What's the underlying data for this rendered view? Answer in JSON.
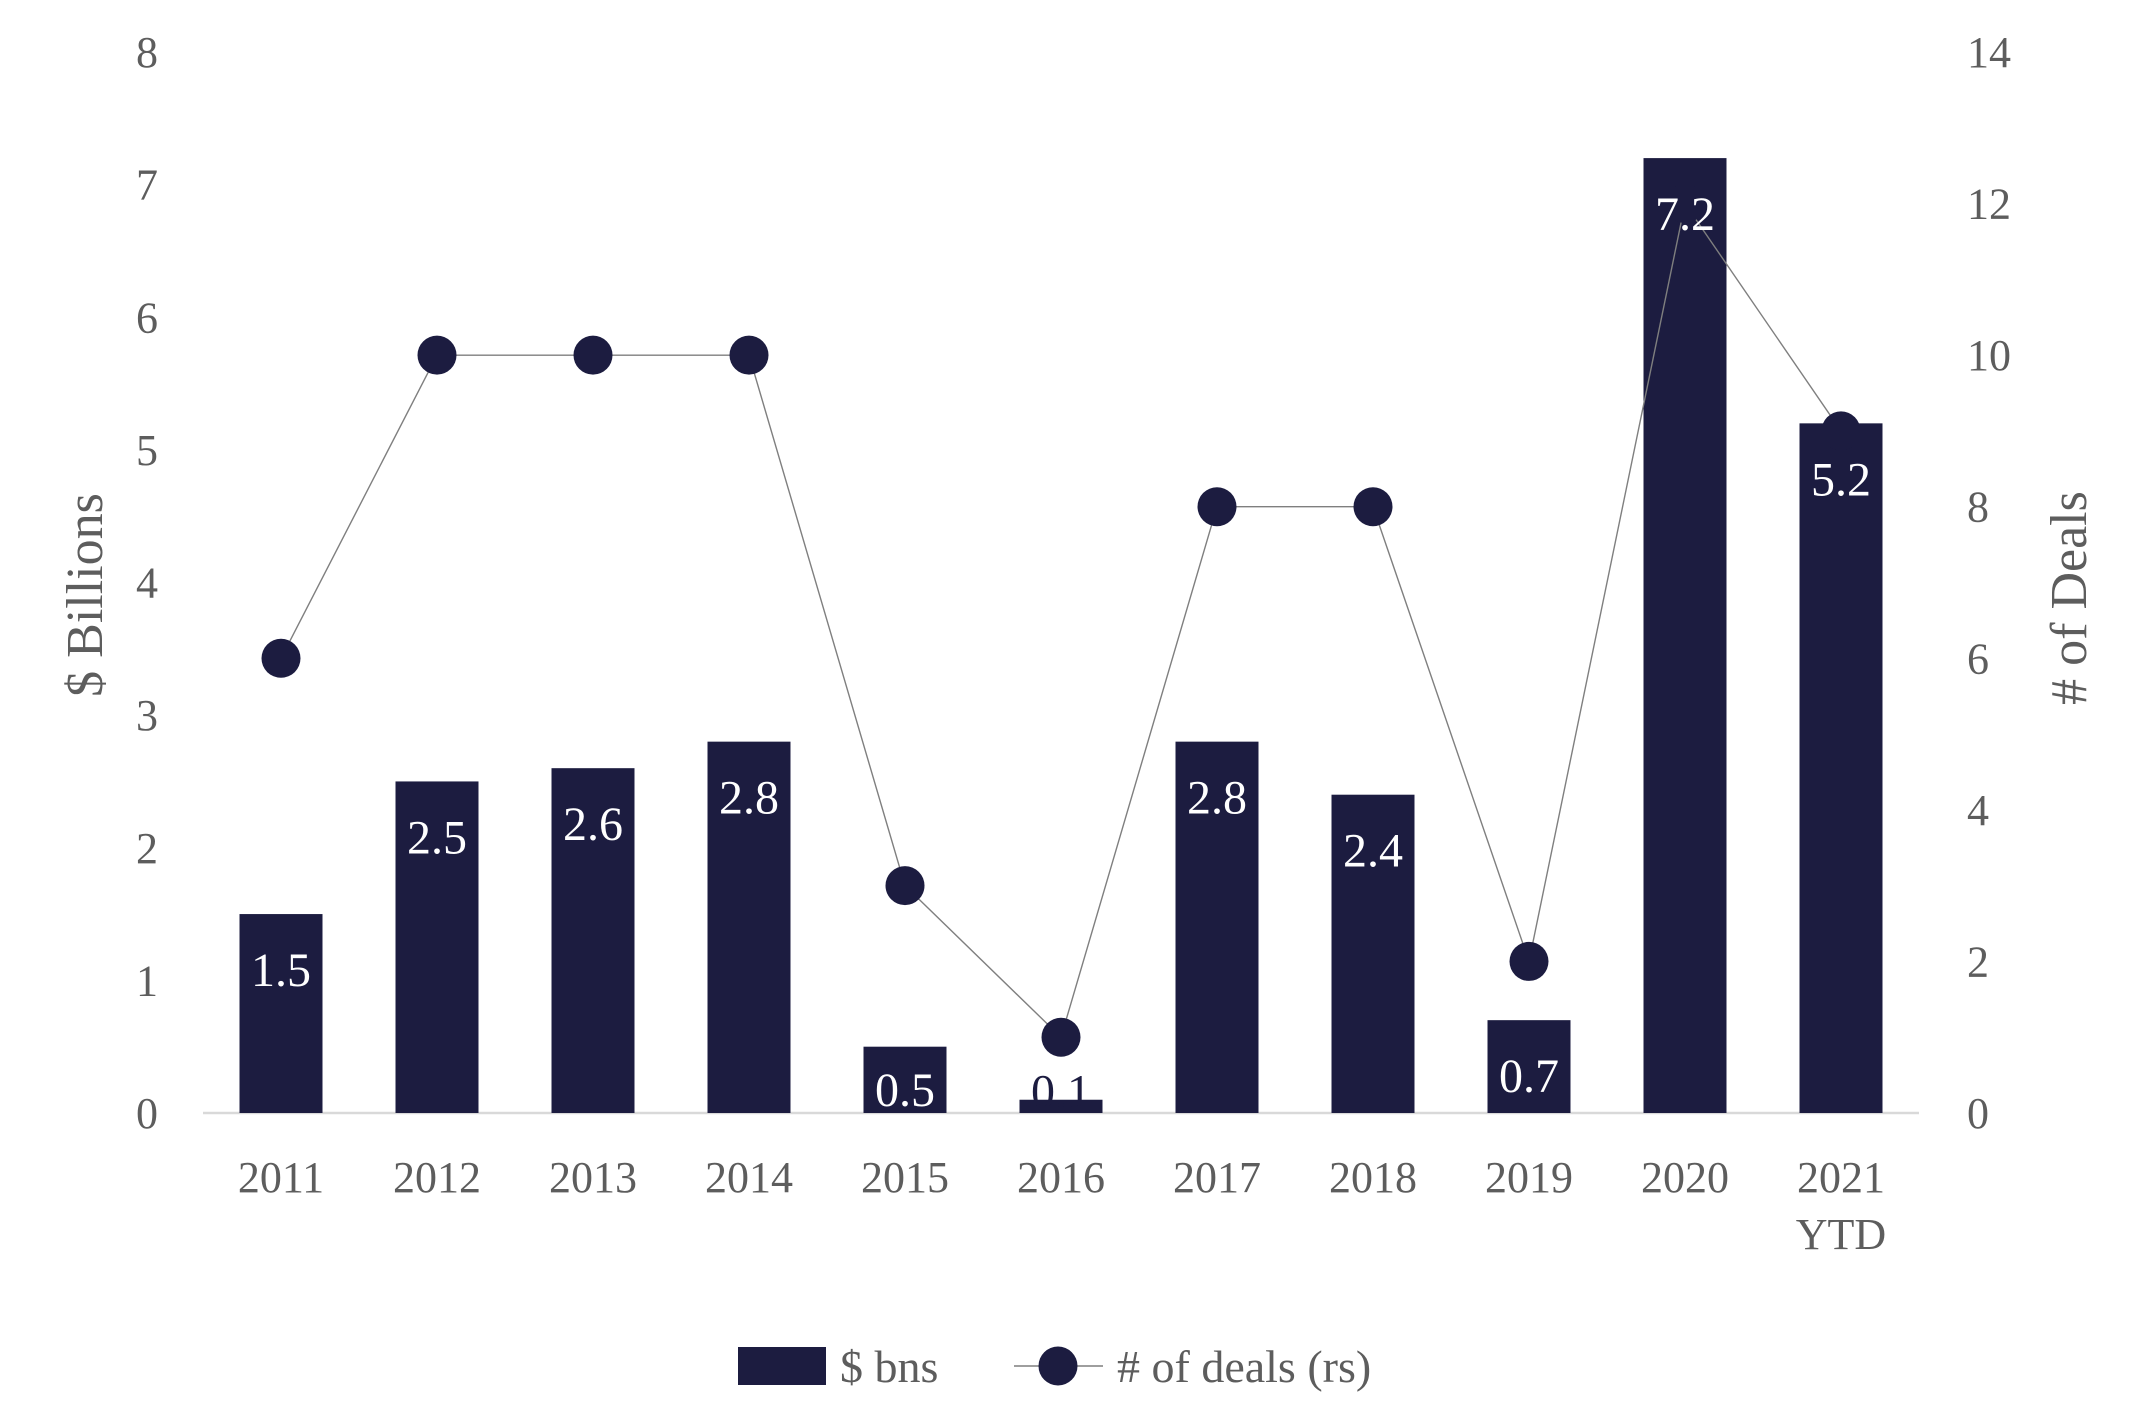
{
  "chart_data": {
    "type": "combo_bar_line",
    "title": "",
    "categories": [
      "2011",
      "2012",
      "2013",
      "2014",
      "2015",
      "2016",
      "2017",
      "2018",
      "2019",
      "2020",
      "2021 YTD"
    ],
    "x_tick_lines": [
      [
        "2011"
      ],
      [
        "2012"
      ],
      [
        "2013"
      ],
      [
        "2014"
      ],
      [
        "2015"
      ],
      [
        "2016"
      ],
      [
        "2017"
      ],
      [
        "2018"
      ],
      [
        "2019"
      ],
      [
        "2020"
      ],
      [
        "2021",
        "YTD"
      ]
    ],
    "series": [
      {
        "name": "$ bns",
        "type": "bar",
        "axis": "left",
        "values": [
          1.5,
          2.5,
          2.6,
          2.8,
          0.5,
          0.1,
          2.8,
          2.4,
          0.7,
          7.2,
          5.2
        ],
        "data_labels": [
          "1.5",
          "2.5",
          "2.6",
          "2.8",
          "0.5",
          "0.1",
          "2.8",
          "2.4",
          "0.7",
          "7.2",
          "5.2"
        ]
      },
      {
        "name": "# of deals (rs)",
        "type": "line",
        "axis": "right",
        "values": [
          6,
          10,
          10,
          10,
          3,
          1,
          8,
          8,
          2,
          12,
          9
        ]
      }
    ],
    "left_axis": {
      "title": "$ Billions",
      "min": 0,
      "max": 8,
      "tick_labels": [
        "0",
        "1",
        "2",
        "3",
        "4",
        "5",
        "6",
        "7",
        "8"
      ]
    },
    "right_axis": {
      "title": "# of Deals",
      "min": 0,
      "max": 14,
      "tick_labels": [
        "0",
        "2",
        "4",
        "6",
        "8",
        "10",
        "12",
        "14"
      ]
    },
    "legend": [
      {
        "label": "$ bns",
        "marker": "bar-swatch"
      },
      {
        "label": "# of deals (rs)",
        "marker": "line-dot"
      }
    ],
    "legend_position": "bottom",
    "grid": false,
    "colors": {
      "bar": "#1c1c40",
      "marker": "#1c1c40",
      "line": "#7f7f7f",
      "axis_line": "#d9d9d9",
      "text": "#5d5d5d",
      "label_inside": "#ffffff",
      "label_outside": "#1c1c40"
    }
  }
}
